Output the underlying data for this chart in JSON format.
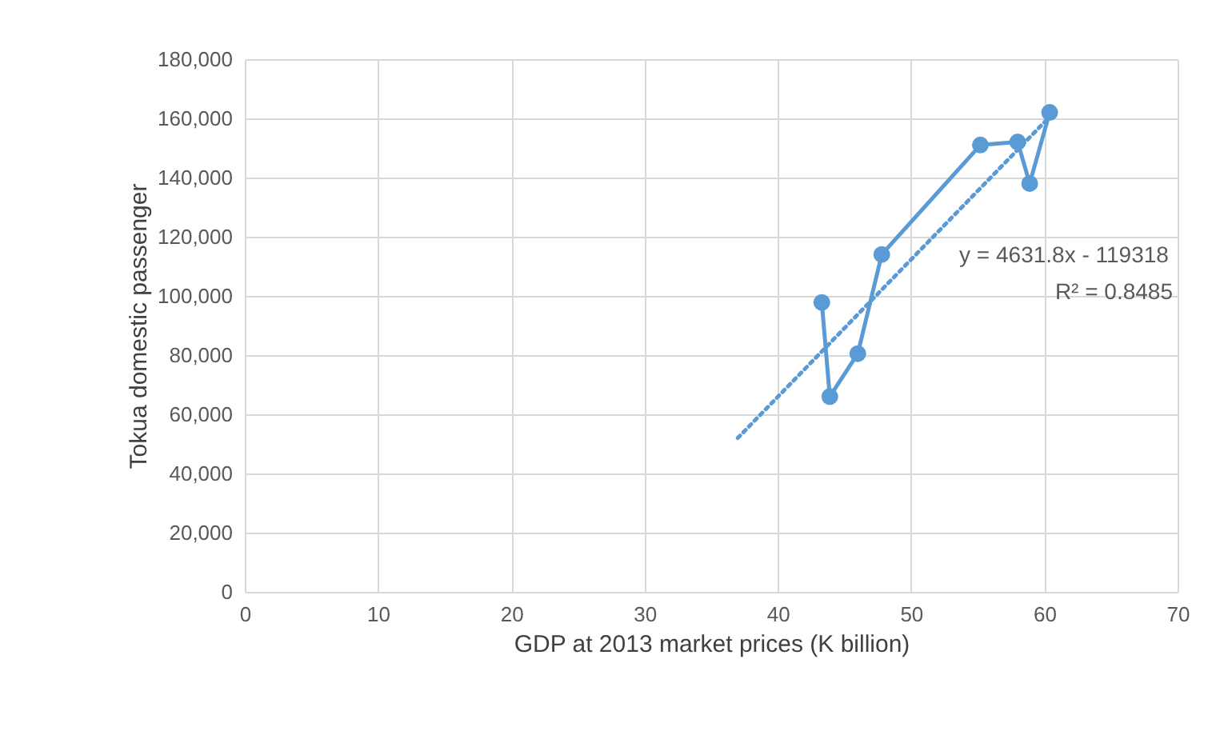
{
  "chart_data": {
    "type": "line",
    "xlabel": "GDP at 2013 market prices (K billion)",
    "ylabel": "Tokua domestic passenger",
    "xlim": [
      0,
      70
    ],
    "xticks": [
      0,
      10,
      20,
      30,
      40,
      50,
      60,
      70
    ],
    "ylim": [
      0,
      180000
    ],
    "yticks": [
      {
        "value": 0,
        "label": "0"
      },
      {
        "value": 20000,
        "label": "20,000"
      },
      {
        "value": 40000,
        "label": "40,000"
      },
      {
        "value": 60000,
        "label": "60,000"
      },
      {
        "value": 80000,
        "label": "80,000"
      },
      {
        "value": 100000,
        "label": "100,000"
      },
      {
        "value": 120000,
        "label": "120,000"
      },
      {
        "value": 140000,
        "label": "140,000"
      },
      {
        "value": 160000,
        "label": "160,000"
      },
      {
        "value": 180000,
        "label": "180,000"
      }
    ],
    "grid": true,
    "series": [
      {
        "type": "line",
        "color": "#5b9bd5",
        "marker": "circle",
        "line_style": "solid",
        "x": [
          43.3,
          43.9,
          46.0,
          47.8,
          55.2,
          58.0,
          58.9,
          60.4
        ],
        "values": [
          97800,
          66000,
          80500,
          114000,
          151000,
          152000,
          138000,
          162000
        ]
      },
      {
        "type": "line",
        "color": "#5b9bd5",
        "marker": "none",
        "line_style": "dotted",
        "x": [
          37,
          60.5
        ],
        "values": [
          52000,
          161000
        ]
      }
    ],
    "annotations": [
      "y = 4631.8x - 119318",
      "R² = 0.8485"
    ]
  }
}
